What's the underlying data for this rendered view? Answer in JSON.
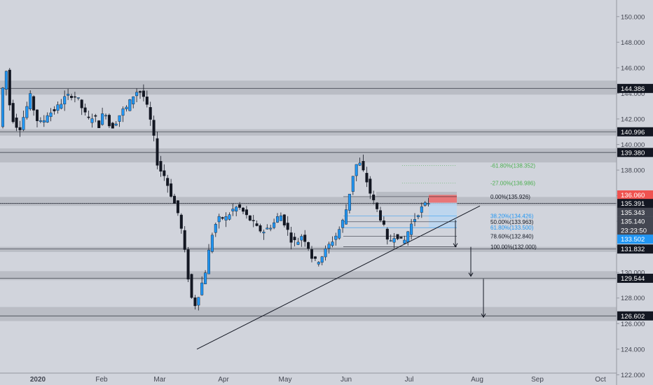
{
  "chart_data": {
    "type": "candlestick",
    "price_axis": {
      "ylim": [
        121.2,
        151.3
      ],
      "ticks": [
        122,
        124,
        126,
        128,
        130,
        132,
        134,
        136,
        138,
        140,
        142,
        144,
        146,
        148,
        150
      ],
      "tick_labels": [
        "122.000",
        "124.000",
        "126.000",
        "128.000",
        "130.000",
        "132.000",
        "134.000",
        "136.000",
        "138.000",
        "140.000",
        "142.000",
        "144.000",
        "146.000",
        "148.000",
        "150.000"
      ]
    },
    "time_axis": {
      "labels": [
        "2020",
        "Feb",
        "Mar",
        "Apr",
        "May",
        "Jun",
        "Jul",
        "Aug",
        "Sep",
        "Oct"
      ],
      "bold": [
        "2020"
      ]
    },
    "zones": [
      {
        "from": 143.9,
        "to": 145.0
      },
      {
        "from": 140.7,
        "to": 141.2
      },
      {
        "from": 138.6,
        "to": 139.7
      },
      {
        "from": 135.2,
        "to": 135.9
      },
      {
        "from": 131.6,
        "to": 132.0
      },
      {
        "from": 129.4,
        "to": 130.1
      },
      {
        "from": 126.2,
        "to": 127.3
      }
    ],
    "level_lines": [
      144.386,
      140.996,
      139.38,
      135.391,
      131.832,
      129.544,
      126.602
    ],
    "trendline": {
      "from": {
        "date": "2020-03-19",
        "price": 124.0
      },
      "to": {
        "date": "2020-08-01",
        "price": 135.2
      }
    },
    "fibonacci": [
      {
        "label": "-61.80%(138.352)",
        "price": 138.352,
        "color": "#4caf50"
      },
      {
        "label": "-27.00%(136.986)",
        "price": 136.986,
        "color": "#4caf50"
      },
      {
        "label": "0.00%(135.926)",
        "price": 135.926,
        "color": "#131722"
      },
      {
        "label": "38.20%(134.426)",
        "price": 134.426,
        "color": "#2196f3"
      },
      {
        "label": "50.00%(133.963)",
        "price": 133.963,
        "color": "#131722"
      },
      {
        "label": "61.80%(133.500)",
        "price": 133.5,
        "color": "#2196f3"
      },
      {
        "label": "78.60%(132.840)",
        "price": 132.84,
        "color": "#131722"
      },
      {
        "label": "100.00%(132.000)",
        "price": 132.0,
        "color": "#131722"
      }
    ],
    "price_labels": [
      {
        "text": "144.386",
        "price": 144.386,
        "style": "dark"
      },
      {
        "text": "140.996",
        "price": 140.996,
        "style": "dark"
      },
      {
        "text": "139.380",
        "price": 139.38,
        "style": "dark"
      },
      {
        "text": "136.060",
        "price": 136.06,
        "style": "red"
      },
      {
        "text": "135.391",
        "price": 135.391,
        "style": "dark"
      },
      {
        "text": "135.343",
        "price": 134.7,
        "style": "gray"
      },
      {
        "text": "135.140",
        "price": 134.0,
        "style": "gray"
      },
      {
        "text": "23:23:50",
        "price": 133.3,
        "style": "gray"
      },
      {
        "text": "133.502",
        "price": 132.6,
        "style": "blue"
      },
      {
        "text": "131.832",
        "price": 131.832,
        "style": "dark"
      },
      {
        "text": "129.544",
        "price": 129.544,
        "style": "dark"
      },
      {
        "text": "126.602",
        "price": 126.602,
        "style": "dark"
      }
    ],
    "colors": {
      "up": "#2196f3",
      "down": "#131722",
      "background": "#d1d4dc",
      "zone": "#b2b5be",
      "sell_box": "#f06a6a",
      "fib_box": "#b8d6f2"
    }
  }
}
